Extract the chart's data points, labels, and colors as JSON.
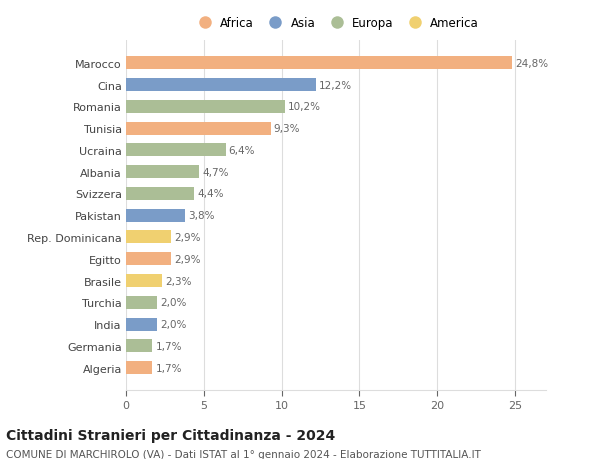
{
  "categories": [
    "Algeria",
    "Germania",
    "India",
    "Turchia",
    "Brasile",
    "Egitto",
    "Rep. Dominicana",
    "Pakistan",
    "Svizzera",
    "Albania",
    "Ucraina",
    "Tunisia",
    "Romania",
    "Cina",
    "Marocco"
  ],
  "values": [
    1.7,
    1.7,
    2.0,
    2.0,
    2.3,
    2.9,
    2.9,
    3.8,
    4.4,
    4.7,
    6.4,
    9.3,
    10.2,
    12.2,
    24.8
  ],
  "labels": [
    "1,7%",
    "1,7%",
    "2,0%",
    "2,0%",
    "2,3%",
    "2,9%",
    "2,9%",
    "3,8%",
    "4,4%",
    "4,7%",
    "6,4%",
    "9,3%",
    "10,2%",
    "12,2%",
    "24,8%"
  ],
  "continent": [
    "Africa",
    "Europa",
    "Asia",
    "Europa",
    "America",
    "Africa",
    "America",
    "Asia",
    "Europa",
    "Europa",
    "Europa",
    "Africa",
    "Europa",
    "Asia",
    "Africa"
  ],
  "colors": {
    "Africa": "#F2B080",
    "Asia": "#7A9CC8",
    "Europa": "#ABBE96",
    "America": "#F0D070"
  },
  "legend_order": [
    "Africa",
    "Asia",
    "Europa",
    "America"
  ],
  "title": "Cittadini Stranieri per Cittadinanza - 2024",
  "subtitle": "COMUNE DI MARCHIROLO (VA) - Dati ISTAT al 1° gennaio 2024 - Elaborazione TUTTITALIA.IT",
  "xlim": [
    0,
    27
  ],
  "xticks": [
    0,
    5,
    10,
    15,
    20,
    25
  ],
  "background_color": "#ffffff",
  "grid_color": "#dddddd",
  "bar_height": 0.6,
  "title_fontsize": 10,
  "subtitle_fontsize": 7.5,
  "label_fontsize": 7.5,
  "tick_fontsize": 8,
  "legend_fontsize": 8.5
}
